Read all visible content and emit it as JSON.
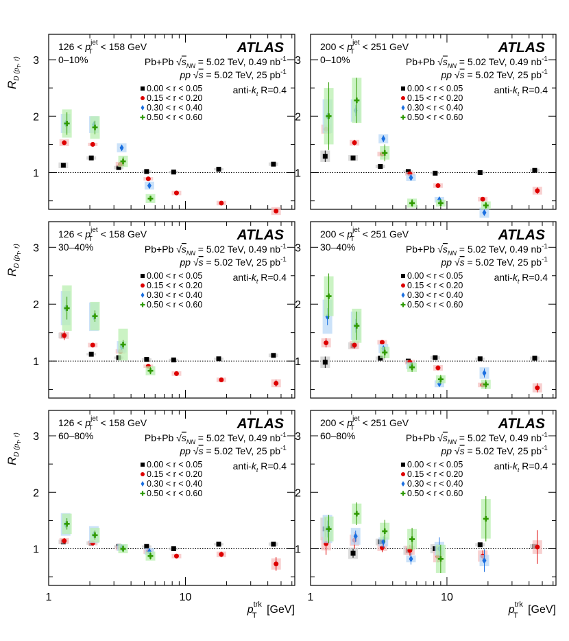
{
  "figure": {
    "ylabel": "R",
    "ylabel_sub": "D (p",
    "ylabel_sub2": "T",
    "ylabel_sub3": ", r)",
    "xlabel_main": "p",
    "xlabel_sup": "trk",
    "xlabel_sub": "T",
    "xlabel_unit": "[GeV]",
    "atlas_label": "ATLAS",
    "pbpb_prefix": "Pb+Pb",
    "pbpb_sqrt": "s",
    "pbpb_sqrt_sub": "NN",
    "pbpb_rest": "= 5.02 TeV, 0.49 nb",
    "pbpb_exp": "-1",
    "pp_prefix": "pp",
    "pp_sqrt": "s",
    "pp_rest": "= 5.02 TeV, 25 pb",
    "pp_exp": "-1",
    "jet_algo_prefix": "anti-k",
    "jet_algo_sub": "t",
    "jet_algo_rest": "R=0.4",
    "y_tick_labels": [
      "1",
      "2",
      "3"
    ],
    "x_tick_labels": [
      "1",
      "10"
    ]
  },
  "legend": [
    {
      "label": "0.00 < r < 0.05",
      "color": "#000000",
      "marker": "square"
    },
    {
      "label": "0.15 < r < 0.20",
      "color": "#dd0000",
      "marker": "circle"
    },
    {
      "label": "0.30 < r < 0.40",
      "color": "#1a6fe0",
      "marker": "diamond"
    },
    {
      "label": "0.50 < r < 0.60",
      "color": "#2f9a00",
      "marker": "cross"
    }
  ],
  "series_colors": {
    "box": [
      "#cfcfcf",
      "#f6c0c0",
      "#b9d8f7",
      "#b9efb0"
    ]
  },
  "chart_data": [
    {
      "type": "scatter",
      "title": "126 < pT jet < 158 GeV, 0–10%",
      "jet_range": {
        "lo": "126",
        "hi": "158",
        "unit": "GeV"
      },
      "centrality": "0–10%",
      "xscale": "log",
      "xlim": [
        1,
        63
      ],
      "ylim": [
        0.35,
        3.45
      ],
      "series": [
        {
          "name": "0.00 < r < 0.05",
          "x": [
            1.28,
            2.05,
            3.25,
            5.2,
            8.2,
            17.5,
            44
          ],
          "y": [
            1.13,
            1.26,
            1.09,
            1.02,
            1.01,
            1.06,
            1.15
          ],
          "err": [
            0.03,
            0.02,
            0.02,
            0.01,
            0.01,
            0.01,
            0.02
          ],
          "syst": [
            0.05,
            0.03,
            0.03,
            0.02,
            0.02,
            0.02,
            0.03
          ]
        },
        {
          "name": "0.15 < r < 0.20",
          "x": [
            1.3,
            2.1,
            3.35,
            5.35,
            8.6,
            18.3,
            46
          ],
          "y": [
            1.53,
            1.5,
            1.15,
            0.89,
            0.64,
            0.46,
            0.32
          ],
          "err": [
            0.03,
            0.02,
            0.02,
            0.02,
            0.02,
            0.02,
            0.03
          ],
          "syst": [
            0.06,
            0.03,
            0.04,
            0.03,
            0.04,
            0.04,
            0.07
          ]
        },
        {
          "name": "0.30 < r < 0.40",
          "x": [
            1.33,
            2.14,
            3.42,
            5.45
          ],
          "y": [
            1.87,
            1.85,
            1.44,
            0.77
          ],
          "err": [
            0.05,
            0.04,
            0.03,
            0.03
          ],
          "syst": [
            0.17,
            0.15,
            0.08,
            0.07
          ]
        },
        {
          "name": "0.50 < r < 0.60",
          "x": [
            1.36,
            2.18,
            3.5,
            5.55
          ],
          "y": [
            1.87,
            1.8,
            1.2,
            0.54
          ],
          "err": [
            0.2,
            0.12,
            0.08,
            0.05
          ],
          "syst": [
            0.25,
            0.2,
            0.1,
            0.08
          ]
        }
      ]
    },
    {
      "type": "scatter",
      "title": "200 < pT jet < 251 GeV, 0–10%",
      "jet_range": {
        "lo": "200",
        "hi": "251",
        "unit": "GeV"
      },
      "centrality": "0–10%",
      "xscale": "log",
      "xlim": [
        1,
        63
      ],
      "ylim": [
        0.35,
        3.45
      ],
      "series": [
        {
          "name": "0.00 < r < 0.05",
          "x": [
            1.28,
            2.05,
            3.25,
            5.2,
            8.2,
            17.5,
            44
          ],
          "y": [
            1.29,
            1.26,
            1.11,
            1.02,
            0.99,
            1.0,
            1.04
          ],
          "err": [
            0.1,
            0.04,
            0.02,
            0.02,
            0.01,
            0.01,
            0.02
          ],
          "syst": [
            0.1,
            0.05,
            0.03,
            0.02,
            0.02,
            0.02,
            0.03
          ]
        },
        {
          "name": "0.15 < r < 0.20",
          "x": [
            1.3,
            2.1,
            3.35,
            5.35,
            8.6,
            18.3,
            46
          ],
          "y": [
            1.77,
            1.53,
            1.33,
            0.98,
            0.77,
            0.53,
            0.68
          ],
          "err": [
            0.05,
            0.05,
            0.03,
            0.02,
            0.02,
            0.02,
            0.06
          ],
          "syst": [
            0.08,
            0.05,
            0.04,
            0.03,
            0.04,
            0.04,
            0.07
          ]
        },
        {
          "name": "0.30 < r < 0.40",
          "x": [
            1.33,
            2.14,
            3.42,
            5.45,
            8.8,
            18.8
          ],
          "y": [
            2.0,
            2.1,
            1.6,
            0.91,
            0.52,
            0.29
          ],
          "err": [
            0.05,
            0.1,
            0.06,
            0.03,
            0.03,
            0.03
          ],
          "syst": [
            0.3,
            0.2,
            0.08,
            0.06,
            0.05,
            0.09
          ]
        },
        {
          "name": "0.50 < r < 0.60",
          "x": [
            1.36,
            2.18,
            3.5,
            5.55,
            9.0,
            19.3
          ],
          "y": [
            2.0,
            2.28,
            1.35,
            0.46,
            0.46,
            0.42
          ],
          "err": [
            0.6,
            0.4,
            0.15,
            0.07,
            0.07,
            0.06
          ],
          "syst": [
            0.5,
            0.4,
            0.12,
            0.08,
            0.06,
            0.07
          ]
        }
      ]
    },
    {
      "type": "scatter",
      "title": "126 < pT jet < 158 GeV, 30–40%",
      "jet_range": {
        "lo": "126",
        "hi": "158",
        "unit": "GeV"
      },
      "centrality": "30–40%",
      "xscale": "log",
      "xlim": [
        1,
        63
      ],
      "ylim": [
        0.35,
        3.45
      ],
      "series": [
        {
          "name": "0.00 < r < 0.05",
          "x": [
            1.28,
            2.05,
            3.25,
            5.2,
            8.2,
            17.5,
            44
          ],
          "y": [
            1.45,
            1.12,
            1.06,
            1.03,
            1.02,
            1.04,
            1.1
          ],
          "err": [
            0.03,
            0.02,
            0.02,
            0.01,
            0.01,
            0.01,
            0.02
          ],
          "syst": [
            0.05,
            0.02,
            0.02,
            0.02,
            0.02,
            0.02,
            0.03
          ]
        },
        {
          "name": "0.15 < r < 0.20",
          "x": [
            1.3,
            2.1,
            3.35,
            5.35,
            8.6,
            18.3,
            46
          ],
          "y": [
            1.45,
            1.28,
            1.17,
            0.91,
            0.78,
            0.67,
            0.61
          ],
          "err": [
            0.08,
            0.03,
            0.03,
            0.02,
            0.02,
            0.02,
            0.06
          ],
          "syst": [
            0.06,
            0.04,
            0.04,
            0.03,
            0.04,
            0.04,
            0.07
          ]
        },
        {
          "name": "0.30 < r < 0.40",
          "x": [
            1.33,
            2.14,
            3.42
          ],
          "y": [
            1.93,
            1.78,
            1.25
          ],
          "err": [
            0.05,
            0.05,
            0.05
          ],
          "syst": [
            0.3,
            0.25,
            0.1
          ]
        },
        {
          "name": "0.50 < r < 0.60",
          "x": [
            1.36,
            2.18,
            3.5,
            5.55
          ],
          "y": [
            1.93,
            1.79,
            1.29,
            0.83
          ],
          "err": [
            0.2,
            0.1,
            0.08,
            0.06
          ],
          "syst": [
            0.4,
            0.25,
            0.28,
            0.08
          ]
        }
      ]
    },
    {
      "type": "scatter",
      "title": "200 < pT jet < 251 GeV, 30–40%",
      "jet_range": {
        "lo": "200",
        "hi": "251",
        "unit": "GeV"
      },
      "centrality": "30–40%",
      "xscale": "log",
      "xlim": [
        1,
        63
      ],
      "ylim": [
        0.35,
        3.45
      ],
      "series": [
        {
          "name": "0.00 < r < 0.05",
          "x": [
            1.28,
            2.05,
            3.25,
            5.2,
            8.2,
            17.5,
            44
          ],
          "y": [
            0.98,
            1.27,
            1.05,
            1.0,
            1.06,
            1.04,
            1.05
          ],
          "err": [
            0.1,
            0.05,
            0.02,
            0.02,
            0.02,
            0.01,
            0.02
          ],
          "syst": [
            0.1,
            0.06,
            0.03,
            0.02,
            0.03,
            0.02,
            0.03
          ]
        },
        {
          "name": "0.15 < r < 0.20",
          "x": [
            1.3,
            2.1,
            3.35,
            5.35,
            8.6,
            18.3,
            46
          ],
          "y": [
            1.32,
            1.28,
            1.33,
            0.98,
            0.88,
            0.58,
            0.53
          ],
          "err": [
            0.08,
            0.06,
            0.03,
            0.03,
            0.03,
            0.03,
            0.08
          ],
          "syst": [
            0.08,
            0.07,
            0.04,
            0.04,
            0.05,
            0.04,
            0.08
          ]
        },
        {
          "name": "0.30 < r < 0.40",
          "x": [
            1.33,
            2.14,
            3.42,
            5.45,
            8.8,
            18.8
          ],
          "y": [
            1.78,
            1.62,
            1.22,
            0.92,
            0.6,
            0.79
          ],
          "err": [
            0.15,
            0.12,
            0.05,
            0.05,
            0.04,
            0.08
          ],
          "syst": [
            0.3,
            0.25,
            0.08,
            0.06,
            0.06,
            0.1
          ]
        },
        {
          "name": "0.50 < r < 0.60",
          "x": [
            1.36,
            2.18,
            3.5,
            5.55,
            9.0,
            19.3
          ],
          "y": [
            2.14,
            1.62,
            1.15,
            0.89,
            0.68,
            0.59
          ],
          "err": [
            0.4,
            0.25,
            0.1,
            0.08,
            0.08,
            0.08
          ],
          "syst": [
            0.35,
            0.3,
            0.1,
            0.08,
            0.07,
            0.08
          ]
        }
      ]
    },
    {
      "type": "scatter",
      "title": "126 < pT jet < 158 GeV, 60–80%",
      "jet_range": {
        "lo": "126",
        "hi": "158",
        "unit": "GeV"
      },
      "centrality": "60–80%",
      "xscale": "log",
      "xlim": [
        1,
        63
      ],
      "ylim": [
        0.35,
        3.45
      ],
      "series": [
        {
          "name": "0.00 < r < 0.05",
          "x": [
            1.28,
            2.05,
            3.25,
            5.2,
            8.2,
            17.5,
            44
          ],
          "y": [
            1.12,
            1.1,
            1.04,
            1.04,
            1.0,
            1.08,
            1.08
          ],
          "err": [
            0.03,
            0.02,
            0.02,
            0.01,
            0.01,
            0.01,
            0.02
          ],
          "syst": [
            0.04,
            0.03,
            0.02,
            0.02,
            0.02,
            0.02,
            0.03
          ]
        },
        {
          "name": "0.15 < r < 0.20",
          "x": [
            1.3,
            2.1,
            3.35,
            5.35,
            8.6,
            18.3,
            46
          ],
          "y": [
            1.14,
            1.1,
            1.01,
            0.95,
            0.87,
            0.9,
            0.73
          ],
          "err": [
            0.05,
            0.03,
            0.03,
            0.03,
            0.03,
            0.05,
            0.12
          ],
          "syst": [
            0.05,
            0.04,
            0.04,
            0.04,
            0.04,
            0.05,
            0.1
          ]
        },
        {
          "name": "0.30 < r < 0.40",
          "x": [
            1.33,
            2.14,
            3.42,
            5.45
          ],
          "y": [
            1.43,
            1.25,
            1.02,
            0.95
          ],
          "err": [
            0.05,
            0.04,
            0.03,
            0.03
          ],
          "syst": [
            0.2,
            0.15,
            0.06,
            0.06
          ]
        },
        {
          "name": "0.50 < r < 0.60",
          "x": [
            1.36,
            2.18,
            3.5,
            5.55
          ],
          "y": [
            1.44,
            1.24,
            1.0,
            0.87
          ],
          "err": [
            0.1,
            0.08,
            0.06,
            0.06
          ],
          "syst": [
            0.18,
            0.13,
            0.08,
            0.08
          ]
        }
      ]
    },
    {
      "type": "scatter",
      "title": "200 < pT jet < 251 GeV, 60–80%",
      "jet_range": {
        "lo": "200",
        "hi": "251",
        "unit": "GeV"
      },
      "centrality": "60–80%",
      "xscale": "log",
      "xlim": [
        1,
        63
      ],
      "ylim": [
        0.35,
        3.45
      ],
      "series": [
        {
          "name": "0.00 < r < 0.05",
          "x": [
            1.28,
            2.05,
            3.25,
            5.2,
            8.2,
            17.5,
            44
          ],
          "y": [
            1.35,
            0.92,
            1.12,
            0.97,
            1.0,
            1.07,
            1.04
          ],
          "err": [
            0.2,
            0.08,
            0.05,
            0.05,
            0.04,
            0.02,
            0.04
          ],
          "syst": [
            0.2,
            0.1,
            0.06,
            0.08,
            0.08,
            0.03,
            0.04
          ]
        },
        {
          "name": "0.15 < r < 0.20",
          "x": [
            1.3,
            2.1,
            3.35,
            5.35,
            8.6,
            18.3,
            46
          ],
          "y": [
            1.09,
            1.15,
            1.02,
            0.97,
            0.86,
            0.87,
            1.03
          ],
          "err": [
            0.2,
            0.15,
            0.08,
            0.1,
            0.1,
            0.1,
            0.3
          ],
          "syst": [
            0.12,
            0.1,
            0.06,
            0.08,
            0.1,
            0.1,
            0.12
          ]
        },
        {
          "name": "0.30 < r < 0.40",
          "x": [
            1.33,
            2.14,
            3.42,
            5.45,
            8.8,
            18.8
          ],
          "y": [
            1.35,
            1.22,
            1.12,
            0.82,
            1.0,
            0.79
          ],
          "err": [
            0.15,
            0.1,
            0.1,
            0.1,
            0.2,
            0.2
          ],
          "syst": [
            0.25,
            0.15,
            0.08,
            0.06,
            0.12,
            0.1
          ]
        },
        {
          "name": "0.50 < r < 0.60",
          "x": [
            1.36,
            2.18,
            3.5,
            5.55,
            9.0,
            19.3
          ],
          "y": [
            1.35,
            1.62,
            1.31,
            1.17,
            0.82,
            1.53
          ],
          "err": [
            0.25,
            0.2,
            0.2,
            0.2,
            0.25,
            0.4
          ],
          "syst": [
            0.22,
            0.18,
            0.15,
            0.18,
            0.25,
            0.35
          ]
        }
      ]
    }
  ]
}
